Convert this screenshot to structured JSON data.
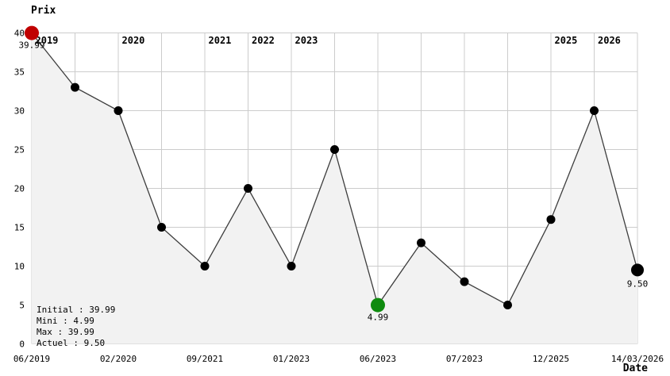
{
  "colors": {
    "background": "#ffffff",
    "plot_fill": "#f2f2f2",
    "grid": "#cccccc",
    "line": "#3d3d3d",
    "point": "#000000",
    "max": "#c00000",
    "max_text": "#cc3333",
    "min": "#0e8b0e",
    "current": "#000000",
    "text": "#000000"
  },
  "chart_data": {
    "type": "line",
    "ylabel": "Prix",
    "xlabel": "Date",
    "ylim": [
      0,
      40
    ],
    "yticks": [
      0,
      5,
      10,
      15,
      20,
      25,
      30,
      35,
      40
    ],
    "grid": "on",
    "area_fill": true,
    "legend_position": "bottom-left",
    "points": [
      {
        "value": 39.99,
        "marker": "max",
        "annotation": "39.99",
        "x_axis_label": "06/2019",
        "year_label": "2019"
      },
      {
        "value": 33
      },
      {
        "value": 30,
        "x_axis_label": "02/2020",
        "year_label": "2020"
      },
      {
        "value": 15
      },
      {
        "value": 10,
        "x_axis_label": "09/2021",
        "year_label": "2021"
      },
      {
        "value": 20,
        "year_label": "2022"
      },
      {
        "value": 10,
        "x_axis_label": "01/2023",
        "year_label": "2023"
      },
      {
        "value": 25
      },
      {
        "value": 4.99,
        "marker": "min",
        "annotation": "4.99",
        "x_axis_label": "06/2023"
      },
      {
        "value": 13
      },
      {
        "value": 8,
        "x_axis_label": "07/2023"
      },
      {
        "value": 5
      },
      {
        "value": 16,
        "x_axis_label": "12/2025",
        "year_label": "2025"
      },
      {
        "value": 30,
        "year_label": "2026"
      },
      {
        "value": 9.5,
        "marker": "current",
        "annotation": "9.50",
        "x_axis_label": "14/03/2026"
      }
    ]
  },
  "legend": {
    "lines": [
      {
        "label": "Initial : 39.99",
        "color_key": "text"
      },
      {
        "label": "Mini : 4.99",
        "color_key": "min"
      },
      {
        "label": "Max : 39.99",
        "color_key": "max"
      },
      {
        "label": "Actuel : 9.50",
        "color_key": "text"
      }
    ]
  }
}
